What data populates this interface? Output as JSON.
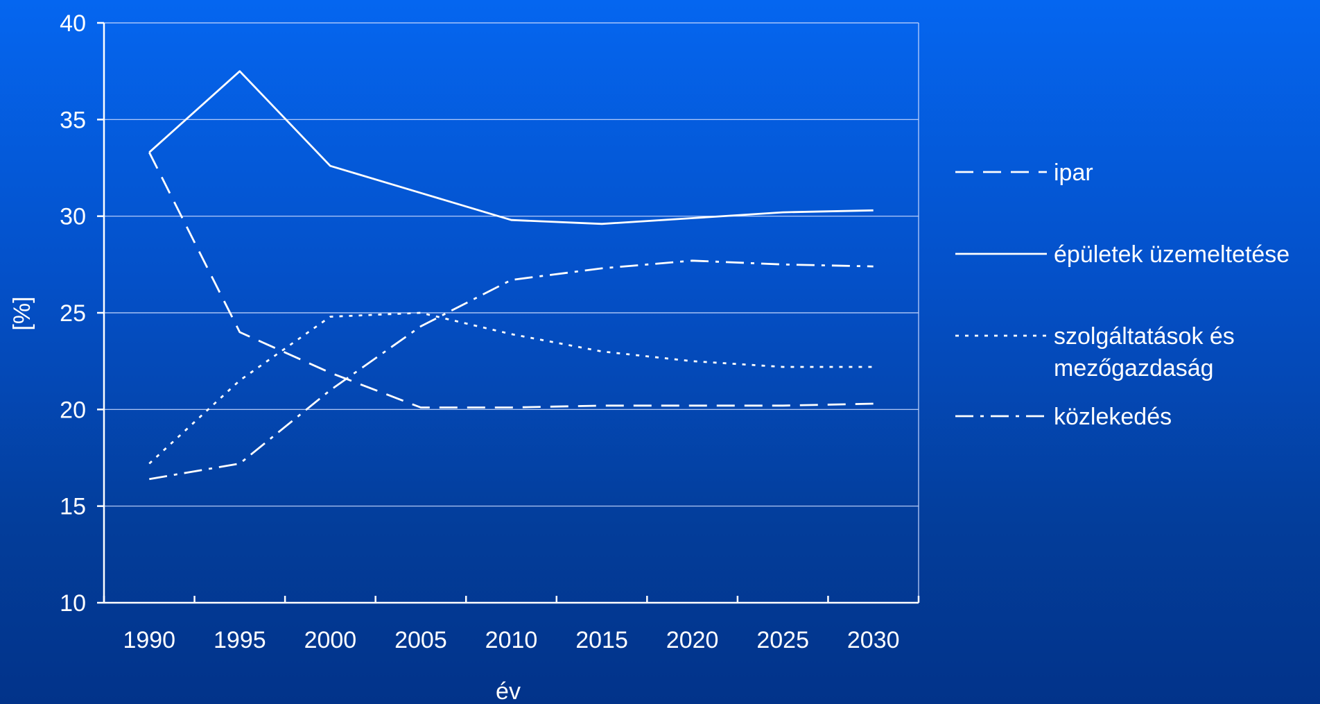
{
  "chart_data": {
    "type": "line",
    "categories": [
      "1990",
      "1995",
      "2000",
      "2005",
      "2010",
      "2015",
      "2020",
      "2025",
      "2030"
    ],
    "series": [
      {
        "name": "ipar",
        "dash": "dashed",
        "values": [
          33.3,
          24.0,
          21.9,
          20.1,
          20.1,
          20.2,
          20.2,
          20.2,
          20.3
        ]
      },
      {
        "name": "épületek üzemeltetése",
        "dash": "solid",
        "values": [
          33.3,
          37.5,
          32.6,
          31.2,
          29.8,
          29.6,
          29.9,
          30.2,
          30.3
        ]
      },
      {
        "name": "szolgáltatások és mezőgazdaság",
        "name_lines": [
          "szolgáltatások és",
          "mezőgazdaság"
        ],
        "dash": "dotted",
        "values": [
          17.2,
          21.5,
          24.8,
          25.0,
          23.9,
          23.0,
          22.5,
          22.2,
          22.2
        ]
      },
      {
        "name": "közlekedés",
        "dash": "dashdot",
        "values": [
          16.4,
          17.2,
          21.0,
          24.3,
          26.7,
          27.3,
          27.7,
          27.5,
          27.4
        ]
      }
    ],
    "xlabel": "év",
    "ylabel": "[%]",
    "ylim": [
      10,
      40
    ],
    "yticks": [
      10,
      15,
      20,
      25,
      30,
      35,
      40
    ],
    "grid": true,
    "legend_position": "right",
    "colors": {
      "lines": "#ffffff",
      "grid": "#c8d8ff",
      "background_top": "#0566f0",
      "background_bottom": "#02338a"
    }
  }
}
